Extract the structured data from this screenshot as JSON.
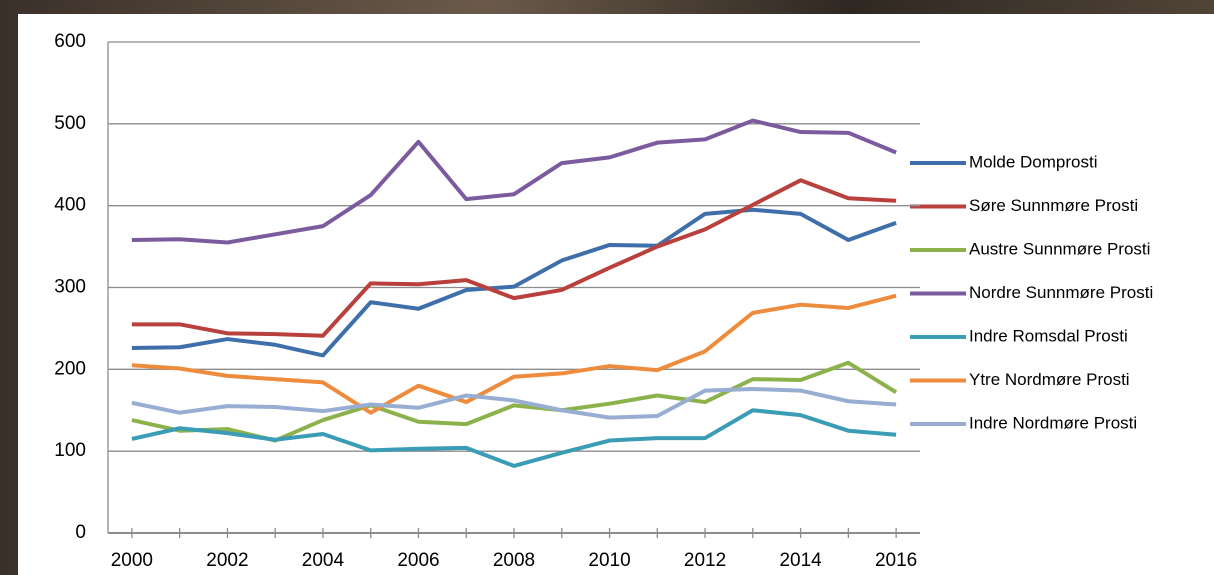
{
  "chart_data": {
    "type": "line",
    "x": [
      2000,
      2001,
      2002,
      2003,
      2004,
      2005,
      2006,
      2007,
      2008,
      2009,
      2010,
      2011,
      2012,
      2013,
      2014,
      2015,
      2016
    ],
    "xlim": [
      1999.5,
      2016.5
    ],
    "xticks": [
      2000,
      2002,
      2004,
      2006,
      2008,
      2010,
      2012,
      2014,
      2016
    ],
    "ylim": [
      0,
      600
    ],
    "yticks": [
      0,
      100,
      200,
      300,
      400,
      500,
      600
    ],
    "grid": true,
    "legend": "right",
    "series": [
      {
        "name": "Molde Domprosti",
        "color": "#3f6faa",
        "values": [
          226,
          227,
          237,
          230,
          217,
          282,
          274,
          297,
          301,
          333,
          352,
          351,
          390,
          395,
          390,
          358,
          379
        ]
      },
      {
        "name": "Søre Sunnmøre Prosti",
        "color": "#b9403c",
        "values": [
          255,
          255,
          244,
          243,
          241,
          305,
          304,
          309,
          287,
          297,
          324,
          350,
          371,
          401,
          431,
          409,
          406
        ]
      },
      {
        "name": "Austre Sunnmøre Prosti",
        "color": "#8cb24b",
        "values": [
          138,
          125,
          127,
          113,
          138,
          156,
          136,
          133,
          156,
          150,
          158,
          168,
          160,
          188,
          187,
          208,
          172
        ]
      },
      {
        "name": "Nordre Sunnmøre Prosti",
        "color": "#7b5b9e",
        "values": [
          358,
          359,
          355,
          365,
          375,
          413,
          478,
          408,
          414,
          452,
          459,
          477,
          481,
          504,
          490,
          489,
          465
        ]
      },
      {
        "name": "Indre Romsdal Prosti",
        "color": "#3a9db5",
        "values": [
          115,
          128,
          122,
          114,
          121,
          101,
          103,
          104,
          82,
          98,
          113,
          116,
          116,
          150,
          144,
          125,
          120
        ]
      },
      {
        "name": "Ytre Nordmøre Prosti",
        "color": "#ee8c3e",
        "values": [
          205,
          201,
          192,
          188,
          184,
          147,
          180,
          160,
          191,
          195,
          204,
          199,
          222,
          269,
          279,
          275,
          290
        ]
      },
      {
        "name": "Indre Nordmøre Prosti",
        "color": "#97add2",
        "values": [
          159,
          147,
          155,
          154,
          149,
          157,
          153,
          168,
          162,
          150,
          141,
          143,
          174,
          176,
          174,
          161,
          157
        ]
      }
    ]
  }
}
